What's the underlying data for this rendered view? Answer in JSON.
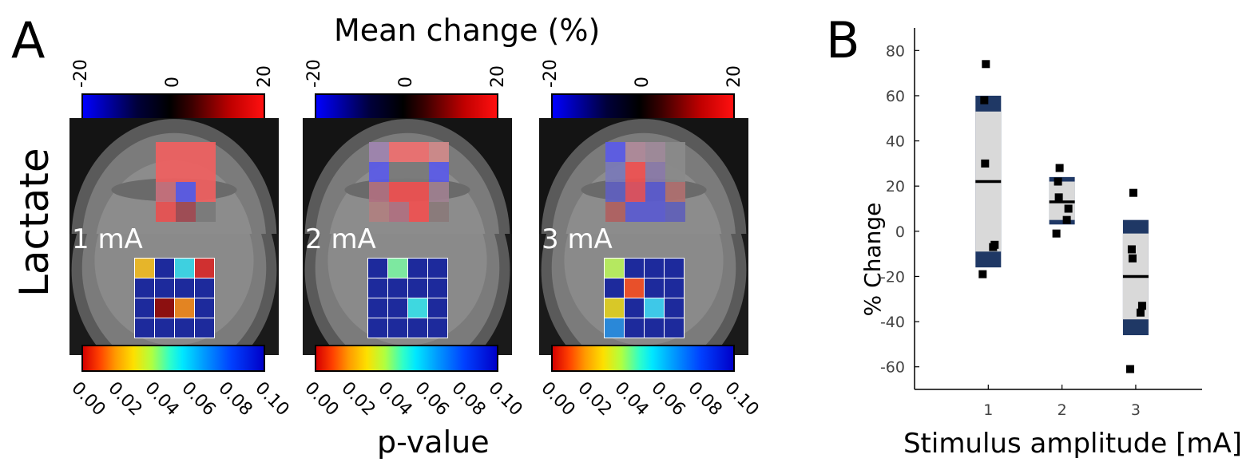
{
  "panel_a": {
    "letter": "A",
    "title": "Mean change (%)",
    "row_label": "Lactate",
    "pvalue_label": "p-value",
    "mean_ticks": [
      "-20",
      "0",
      "20"
    ],
    "p_ticks": [
      "0.00",
      "0.02",
      "0.04",
      "0.06",
      "0.08",
      "0.10"
    ],
    "amplitudes": [
      {
        "label": "1 mA",
        "mean_cells": [
          [
            null,
            "#f06060",
            "#f06060",
            "#f06060"
          ],
          [
            null,
            "#f06060",
            "#f06060",
            "#f06060"
          ],
          [
            null,
            "#c8707c",
            "#5a5ae8",
            "#f06060"
          ],
          [
            null,
            "#e85050",
            "#a04850",
            "#7a7a7a"
          ]
        ],
        "p_cells": [
          [
            "#e6b52a",
            "#1d2a9c",
            "#3ed0e0",
            "#d03030"
          ],
          [
            "#1d2a9c",
            "#1d2a9c",
            "#1d2a9c",
            "#1d2a9c"
          ],
          [
            "#1d2a9c",
            "#8c1010",
            "#e38422",
            "#1d2a9c"
          ],
          [
            "#1d2a9c",
            "#1d2a9c",
            "#1d2a9c",
            "#1d2a9c"
          ]
        ]
      },
      {
        "label": "2 mA",
        "mean_cells": [
          [
            "#a084b0",
            "#f07070",
            "#f07070",
            "#d08a8a"
          ],
          [
            "#5a5ae8",
            "#7a7a7a",
            "#7a7a7a",
            "#5a5ae8"
          ],
          [
            "#b07080",
            "#f05050",
            "#f05050",
            "#a08090"
          ],
          [
            "#b08080",
            "#b07080",
            "#f05050",
            "#8a7a7a"
          ]
        ],
        "p_cells": [
          [
            "#1d2a9c",
            "#7de8a0",
            "#1d2a9c",
            "#1d2a9c"
          ],
          [
            "#1d2a9c",
            "#1d2a9c",
            "#1d2a9c",
            "#1d2a9c"
          ],
          [
            "#1d2a9c",
            "#1d2a9c",
            "#3ed8e0",
            "#1d2a9c"
          ],
          [
            "#1d2a9c",
            "#1d2a9c",
            "#1d2a9c",
            "#1d2a9c"
          ]
        ]
      },
      {
        "label": "3 mA",
        "mean_cells": [
          [
            "#5a5ae8",
            "#b08a9a",
            "#a08a9a",
            "#8a8a8a"
          ],
          [
            "#7a7ab8",
            "#f05050",
            "#8a7aa8",
            "#8a8a8a"
          ],
          [
            "#6060c0",
            "#e05060",
            "#5a5ad0",
            "#b07070"
          ],
          [
            "#b06060",
            "#5a5ad0",
            "#5a5ad0",
            "#6060b8"
          ]
        ],
        "p_cells": [
          [
            "#b5e860",
            "#1d2a9c",
            "#1d2a9c",
            "#1d2a9c"
          ],
          [
            "#1d2a9c",
            "#e8502a",
            "#1d2a9c",
            "#1d2a9c"
          ],
          [
            "#d8c828",
            "#1d2a9c",
            "#3ec8e8",
            "#1d2a9c"
          ],
          [
            "#2a88d8",
            "#1d2a9c",
            "#1d2a9c",
            "#1d2a9c"
          ]
        ]
      }
    ]
  },
  "chart_data": {
    "type": "scatter",
    "panel_letter": "B",
    "title": "",
    "xlabel": "Stimulus amplitude [mA]",
    "ylabel": "% Change",
    "ylim": [
      -70,
      90
    ],
    "xlim": [
      0.0,
      3.9
    ],
    "yticks": [
      80,
      60,
      40,
      20,
      0,
      -20,
      -40,
      -60
    ],
    "xticks": [
      1,
      2,
      3
    ],
    "series": [
      {
        "x": 1,
        "label": "1",
        "mean": 22,
        "sem_lower": -16,
        "sem_upper": 60,
        "ci_lower": -9,
        "ci_upper": 53,
        "points": [
          74,
          58,
          30,
          -6,
          -7,
          -19
        ]
      },
      {
        "x": 2,
        "label": "2",
        "mean": 13,
        "sem_lower": 3,
        "sem_upper": 24,
        "ci_lower": 5,
        "ci_upper": 22,
        "points": [
          28,
          22,
          15,
          10,
          5,
          -1
        ]
      },
      {
        "x": 3,
        "label": "3",
        "mean": -20,
        "sem_lower": -46,
        "sem_upper": 5,
        "ci_lower": -39,
        "ci_upper": -1,
        "points": [
          17,
          -8,
          -12,
          -33,
          -36,
          -61
        ]
      }
    ],
    "colors": {
      "sem": "#1f3865",
      "ci": "#d9d9d9",
      "marker": "#000000"
    }
  }
}
